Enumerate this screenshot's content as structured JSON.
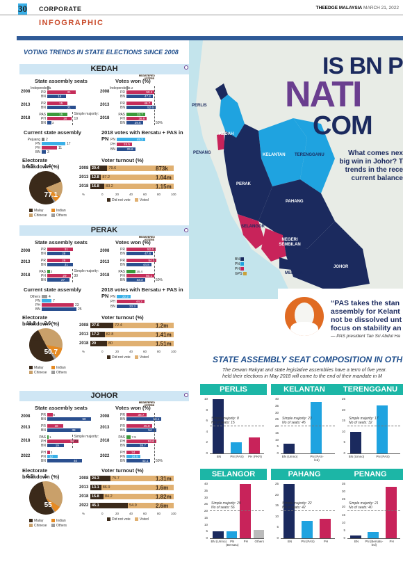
{
  "header": {
    "page_number": "30",
    "section": "CORPORATE",
    "publication": "THEEDGE MALAYSIA",
    "date": "MARCH 21, 2022"
  },
  "infographic_label": "INFOGRAPHIC",
  "voting_trends_title": "VOTING TRENDS IN STATE ELECTIONS SINCE 2008",
  "common": {
    "seats_label": "State assembly seats",
    "votes_label": "Votes won (%)",
    "current_label": "Current state assembly",
    "electorate_label": "Electorate breakdown (%)",
    "turnout_label": "Voter turnout (%)",
    "registered_voters": "REGISTERED VOTERS",
    "did_not_vote": "Did not vote",
    "voted": "Voted",
    "legend_malay": "Malay",
    "legend_indian": "Indian",
    "legend_chinese": "Chinese",
    "legend_others": "Others",
    "axis_ticks": [
      "%",
      "0",
      "20",
      "40",
      "60",
      "80",
      "100"
    ],
    "fifty": "50%",
    "simple_majority": "Simple majority:"
  },
  "kedah": {
    "name": "KEDAH",
    "bersatu_label": "2018 votes with Bersatu + PAS in PN",
    "seats": [
      {
        "year": "2008",
        "rows": [
          [
            "Independent",
            "1"
          ],
          [
            "PR",
            "21"
          ],
          [
            "BN",
            "14"
          ]
        ]
      },
      {
        "year": "2013",
        "rows": [
          [
            "PR",
            "15"
          ],
          [
            "BN",
            "21"
          ]
        ]
      },
      {
        "year": "2018",
        "rows": [
          [
            "PAS",
            "15"
          ],
          [
            "PH",
            "18"
          ],
          [
            "BN",
            "3"
          ]
        ]
      }
    ],
    "majority": "19",
    "votes": [
      {
        "year": "2008",
        "rows": [
          [
            "Independent",
            "2.2"
          ],
          [
            "PR",
            "50.4"
          ],
          [
            "BN",
            "47.4"
          ]
        ]
      },
      {
        "year": "2013",
        "rows": [
          [
            "PR",
            "46.7"
          ],
          [
            "BN",
            "52.6"
          ]
        ]
      },
      {
        "year": "2018",
        "rows": [
          [
            "PAS",
            "33.7"
          ],
          [
            "PH",
            "36.8"
          ],
          [
            "BN",
            "29.6"
          ]
        ]
      }
    ],
    "current": [
      [
        "Pejuang",
        "2"
      ],
      [
        "PN",
        "17"
      ],
      [
        "PH",
        "11"
      ],
      [
        "BN",
        "3"
      ]
    ],
    "bersatu": [
      [
        "PN",
        "45.3"
      ],
      [
        "PH",
        "24.5"
      ],
      [
        "BN",
        "29.6"
      ]
    ],
    "electorate": {
      "malay": "77.1",
      "chinese": "15",
      "indian": "6.5",
      "others": "1.4"
    },
    "turnout": [
      {
        "year": "2008",
        "dn": "20.4",
        "v": "79.6",
        "reg": "873k"
      },
      {
        "year": "2013",
        "dn": "12.8",
        "v": "87.2",
        "reg": "1.04m"
      },
      {
        "year": "2018",
        "dn": "16.8",
        "v": "83.2",
        "reg": "1.15m"
      }
    ]
  },
  "perak": {
    "name": "PERAK",
    "seats": [
      {
        "year": "2008",
        "rows": [
          [
            "PR",
            "31"
          ],
          [
            "BN",
            "28"
          ]
        ]
      },
      {
        "year": "2013",
        "rows": [
          [
            "PR",
            "28"
          ],
          [
            "BN",
            "31"
          ]
        ]
      },
      {
        "year": "2018",
        "rows": [
          [
            "PAS",
            "3"
          ],
          [
            "PH",
            "29"
          ],
          [
            "BN",
            "27"
          ]
        ]
      }
    ],
    "majority": "30",
    "votes": [
      {
        "year": "2008",
        "rows": [
          [
            "PR",
            "52.4"
          ],
          [
            "BN",
            "47.6"
          ]
        ]
      },
      {
        "year": "2013",
        "rows": [
          [
            "PR",
            "54.3"
          ],
          [
            "BN",
            "44.8"
          ]
        ]
      },
      {
        "year": "2018",
        "rows": [
          [
            "PAS",
            "16.4"
          ],
          [
            "PH",
            "50.1"
          ],
          [
            "BN",
            "33.3"
          ]
        ]
      }
    ],
    "current": [
      [
        "Others",
        "4"
      ],
      [
        "PN",
        "7"
      ],
      [
        "PH",
        "23"
      ],
      [
        "BN",
        "25"
      ]
    ],
    "bersatu": [
      [
        "PN",
        "22.2"
      ],
      [
        "PH",
        "44.2"
      ],
      [
        "BN",
        "33.3"
      ]
    ],
    "electorate": {
      "malay": "50.7",
      "chinese": "35.5",
      "indian": "11.2",
      "others": "2.6"
    },
    "turnout": [
      {
        "year": "2008",
        "dn": "27.6",
        "v": "72.4",
        "reg": "1.2m"
      },
      {
        "year": "2013",
        "dn": "17.2",
        "v": "82.8",
        "reg": "1.41m"
      },
      {
        "year": "2018",
        "dn": "20",
        "v": "80",
        "reg": "1.51m"
      }
    ]
  },
  "johor": {
    "name": "JOHOR",
    "seats": [
      {
        "year": "2008",
        "rows": [
          [
            "PR",
            "6"
          ],
          [
            "BN",
            "50"
          ]
        ]
      },
      {
        "year": "2013",
        "rows": [
          [
            "PR",
            "18"
          ],
          [
            "BN",
            "38"
          ]
        ]
      },
      {
        "year": "2018",
        "rows": [
          [
            "PAS",
            "1"
          ],
          [
            "PH",
            "36"
          ],
          [
            "BN",
            "19"
          ]
        ]
      },
      {
        "year": "2022",
        "rows": [
          [
            "PH",
            "3"
          ],
          [
            "PN",
            "12"
          ],
          [
            "BN",
            "40"
          ]
        ]
      }
    ],
    "majority_2018": "29",
    "votes": [
      {
        "year": "2008",
        "rows": [
          [
            "PR",
            "35.7"
          ],
          [
            "BN",
            "63.1"
          ]
        ]
      },
      {
        "year": "2013",
        "rows": [
          [
            "PR",
            "45.8"
          ],
          [
            "BN",
            "54"
          ]
        ]
      },
      {
        "year": "2018",
        "rows": [
          [
            "PAS",
            "7.9"
          ],
          [
            "PH",
            "53.6"
          ],
          [
            "BN",
            "38.7"
          ]
        ]
      },
      {
        "year": "2022",
        "rows": [
          [
            "PH",
            "24"
          ],
          [
            "PN",
            "24.5"
          ],
          [
            "BN",
            "43.1"
          ]
        ]
      }
    ],
    "electorate_label": "Electorate breakdown (%)",
    "electorate": {
      "malay": "55",
      "chinese": "37.5",
      "indian": "6.5",
      "others": "1"
    },
    "turnout": [
      {
        "year": "2008",
        "dn": "24.3",
        "v": "75.7",
        "reg": "1.31m"
      },
      {
        "year": "2013",
        "dn": "13.1",
        "v": "86.9",
        "reg": "1.6m"
      },
      {
        "year": "2018",
        "dn": "15.8",
        "v": "84.2",
        "reg": "1.82m"
      },
      {
        "year": "2022",
        "dn": "45.1",
        "v": "54.9",
        "reg": "2.6m"
      }
    ]
  },
  "headline": {
    "line1": "IS BN PO",
    "line2": "NATI",
    "line3": "COM"
  },
  "intro_text": "What comes nex big win in Johor? T trends in the rece current balance",
  "quote": {
    "text": "“PAS takes the stan assembly for Kelant not be dissolved unt focus on stability an",
    "by": "— PAS president Tan Sri Abdul Ha"
  },
  "map": {
    "states": [
      "PERLIS",
      "KEDAH",
      "PENANG",
      "KELANTAN",
      "TERENGGANU",
      "PERAK",
      "PAHANG",
      "SELANGOR",
      "NEGERI SEMBILAN",
      "MELAKA",
      "JOHOR"
    ],
    "legend": [
      "BN",
      "PN",
      "PH",
      "GPS"
    ],
    "colors": {
      "BN": "#1b2a5e",
      "PN": "#1fa3e0",
      "PH": "#c8235a",
      "GPS": "#c9a13b",
      "sea": "#c3e4ec",
      "land": "#e8ece6"
    }
  },
  "seat_comp": {
    "title": "STATE ASSEMBLY SEAT COMPOSITION IN OTH",
    "desc1": "The Dewan Rakyat and state legislative assemblies have a term of five year.",
    "desc2": "held their elections in May 2018 will come to the end of their mandate in M",
    "charts": [
      {
        "state": "PERLIS",
        "ymax": 10,
        "ticks": [
          "10",
          "8",
          "6",
          "4",
          "2",
          "0"
        ],
        "cats": [
          "BN",
          "PN (PAS)",
          "PH (PKR)"
        ],
        "values": [
          10,
          2,
          3
        ],
        "maj": "Simple majority: 8",
        "seats": "No of seats: 15"
      },
      {
        "state": "KELANTAN",
        "ymax": 40,
        "ticks": [
          "40",
          "35",
          "30",
          "25",
          "20",
          "15",
          "10",
          "5",
          "0"
        ],
        "cats": [
          "BN (Umno)",
          "PN (PAS-led)"
        ],
        "values": [
          7,
          38
        ],
        "maj": "Simple majority: 23",
        "seats": "No of seats: 45"
      },
      {
        "state": "TERENGGANU",
        "ymax": 25,
        "ticks": [
          "25",
          "20",
          "15",
          "10",
          "5",
          "0"
        ],
        "cats": [
          "BN (Umno)",
          "PN (PAS)"
        ],
        "values": [
          10,
          22
        ],
        "maj": "Simple majority: 17",
        "seats": "No of seats: 32"
      },
      {
        "state": "SELANGOR",
        "ymax": 40,
        "ticks": [
          "40",
          "35",
          "30",
          "25",
          "20",
          "15",
          "10",
          "5",
          "0"
        ],
        "cats": [
          "BN (Umno)",
          "PN (Bersatu)",
          "PH",
          "Others"
        ],
        "values": [
          5,
          5,
          40,
          6
        ],
        "maj": "Simple majority: 29",
        "seats": "No of seats: 56"
      },
      {
        "state": "PAHANG",
        "ymax": 25,
        "ticks": [
          "25",
          "20",
          "15",
          "10",
          "5",
          "0"
        ],
        "cats": [
          "BN",
          "PN (PAS)",
          "PH"
        ],
        "values": [
          25,
          8,
          9
        ],
        "maj": "Simple majority: 22",
        "seats": "No of seats: 42"
      },
      {
        "state": "PENANG",
        "ymax": 35,
        "ticks": [
          "35",
          "30",
          "25",
          "20",
          "15",
          "10",
          "5",
          "0"
        ],
        "cats": [
          "BN",
          "PN (Bersatu-led)",
          "PH"
        ],
        "values": [
          2,
          4,
          33
        ],
        "maj": "Simple majority: 21",
        "seats": "No of seats: 40"
      }
    ]
  },
  "colors": {
    "BN": "#2a4f8f",
    "PH": "#c52d5a",
    "PAS": "#3c9a3c",
    "PN": "#3ab0e8",
    "PR": "#c52d5a",
    "Independent": "#7a7a7a",
    "Pejuang": "#7a7a7a",
    "Others": "#999999",
    "malay": "#3b2a1a",
    "chinese": "#c9a06a",
    "indian": "#e58a23",
    "others_pie": "#9a9a9a",
    "accent": "#1cb6a6"
  }
}
